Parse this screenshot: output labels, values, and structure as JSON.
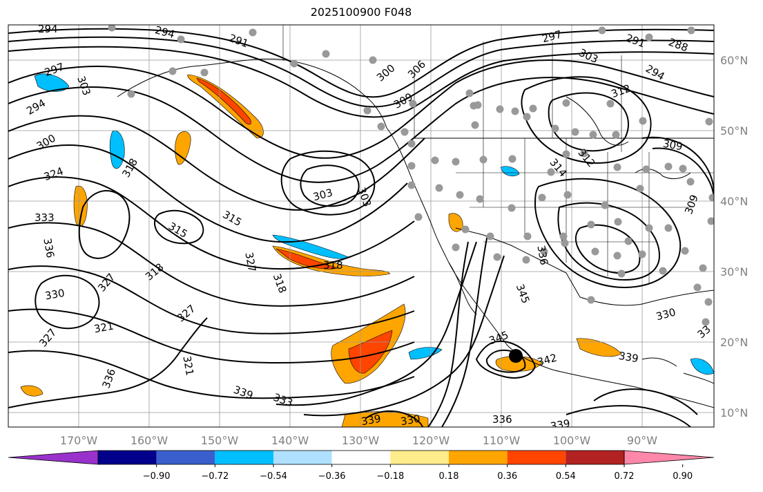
{
  "title": "2025100900 F048",
  "map": {
    "lon_labels": [
      "170°W",
      "160°W",
      "150°W",
      "140°W",
      "130°W",
      "120°W",
      "110°W",
      "100°W",
      "90°W"
    ],
    "lat_labels": [
      "60°N",
      "50°N",
      "40°N",
      "30°N",
      "20°N",
      "10°N"
    ],
    "contour_labels": [
      {
        "text": "294"
      },
      {
        "text": "294"
      },
      {
        "text": "291"
      },
      {
        "text": "297"
      },
      {
        "text": "303"
      },
      {
        "text": "294"
      },
      {
        "text": "300"
      },
      {
        "text": "324"
      },
      {
        "text": "318"
      },
      {
        "text": "333"
      },
      {
        "text": "336"
      },
      {
        "text": "330"
      },
      {
        "text": "327"
      },
      {
        "text": "327"
      },
      {
        "text": "321"
      },
      {
        "text": "336"
      },
      {
        "text": "318"
      },
      {
        "text": "327"
      },
      {
        "text": "315"
      },
      {
        "text": "315"
      },
      {
        "text": "327"
      },
      {
        "text": "318"
      },
      {
        "text": "318"
      },
      {
        "text": "321"
      },
      {
        "text": "339"
      },
      {
        "text": "333"
      },
      {
        "text": "303"
      },
      {
        "text": "303"
      },
      {
        "text": "300"
      },
      {
        "text": "306"
      },
      {
        "text": "309"
      },
      {
        "text": "297"
      },
      {
        "text": "303"
      },
      {
        "text": "291"
      },
      {
        "text": "288"
      },
      {
        "text": "294"
      },
      {
        "text": "312"
      },
      {
        "text": "309"
      },
      {
        "text": "312"
      },
      {
        "text": "314"
      },
      {
        "text": "309"
      },
      {
        "text": "336"
      },
      {
        "text": "345"
      },
      {
        "text": "345"
      },
      {
        "text": "342"
      },
      {
        "text": "330"
      },
      {
        "text": "339"
      },
      {
        "text": "336"
      },
      {
        "text": "339"
      },
      {
        "text": "339"
      },
      {
        "text": "330"
      },
      {
        "text": "33"
      }
    ]
  },
  "colorbar": {
    "ticks": [
      "−0.90",
      "−0.72",
      "−0.54",
      "−0.36",
      "−0.18",
      "0.18",
      "0.36",
      "0.54",
      "0.72",
      "0.90"
    ],
    "colors": [
      "#9932cc",
      "#00008b",
      "#3a5fcd",
      "#00bfff",
      "#b0e0ff",
      "#ffffff",
      "#ffec8b",
      "#ffa500",
      "#ff4500",
      "#b22222",
      "#ff88aa"
    ]
  },
  "colors": {
    "contour": "#000000",
    "station_dot": "#999999",
    "positive_fill": "#ffa500",
    "strong_positive_fill": "#ff4500",
    "negative_fill": "#00bfff"
  }
}
